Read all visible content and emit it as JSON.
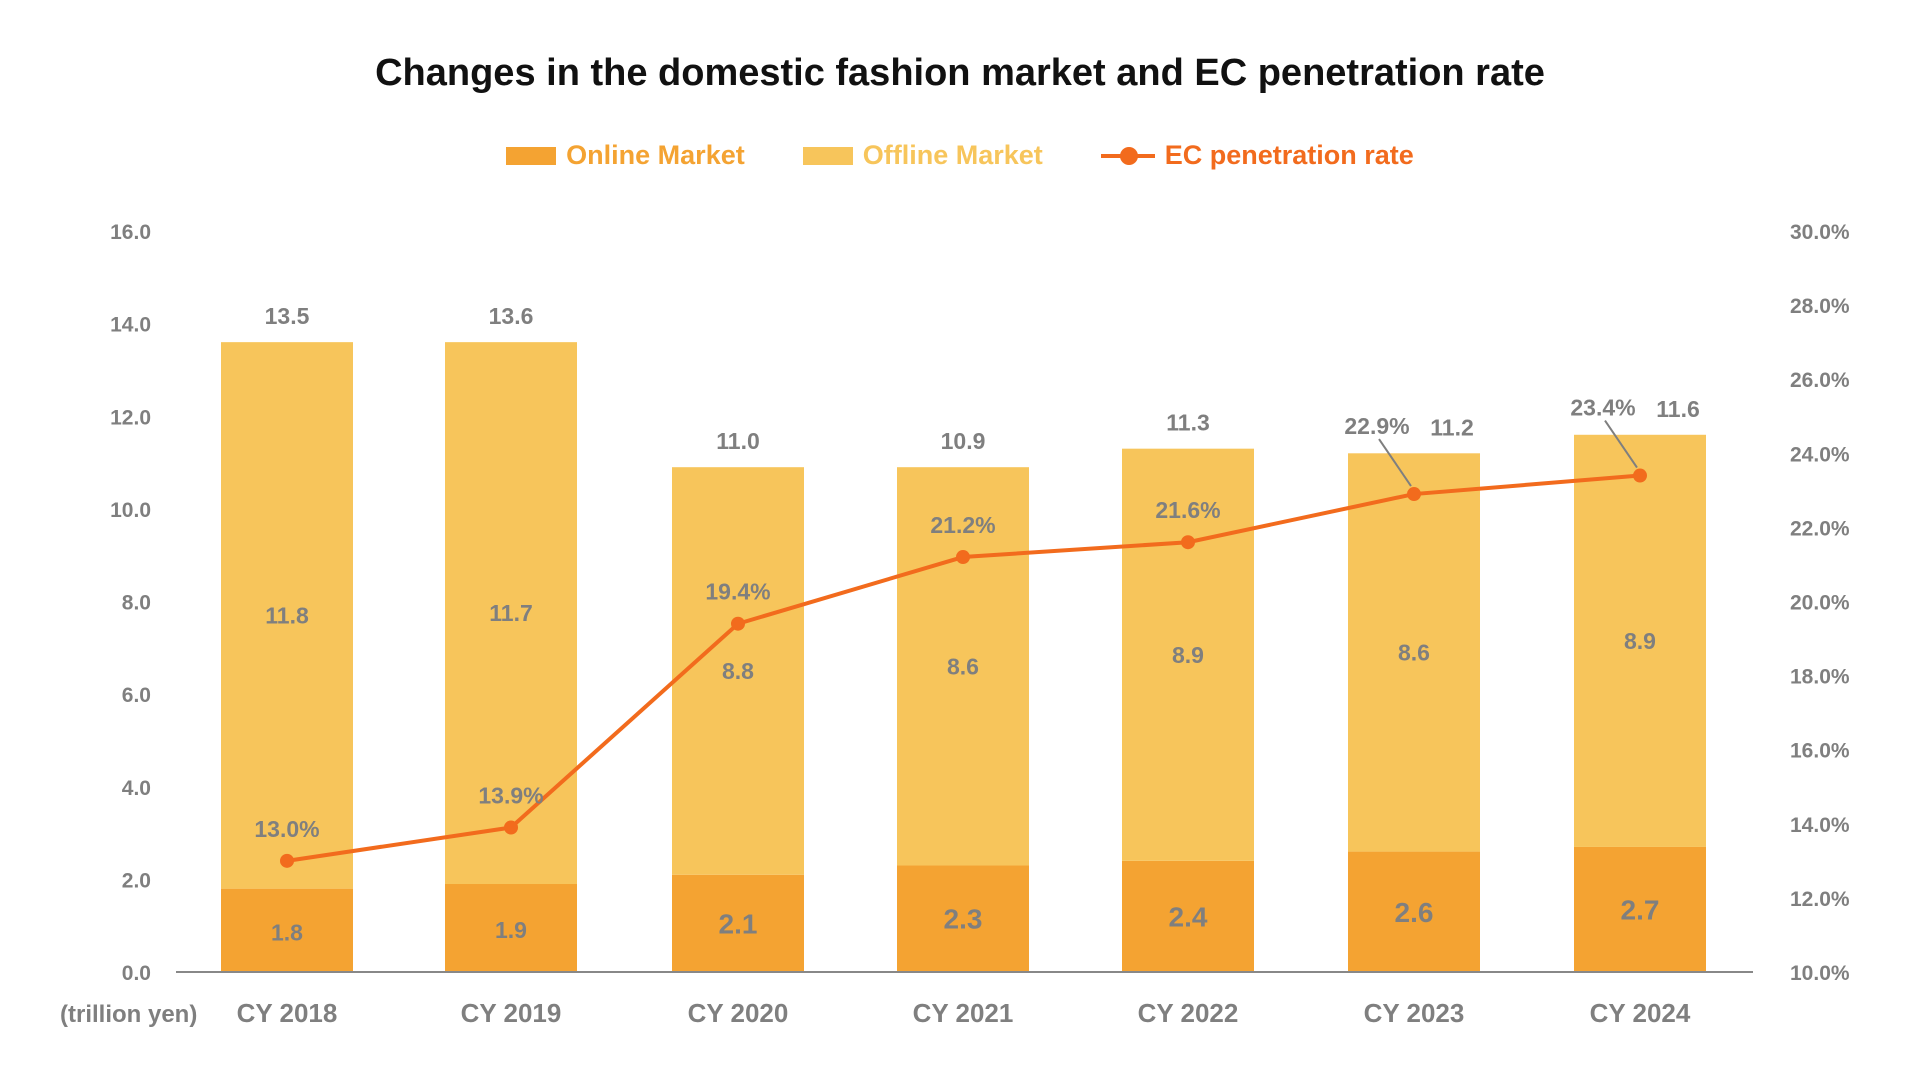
{
  "chart_data": {
    "type": "bar+line",
    "title": "Changes in the domestic fashion market and EC penetration rate",
    "unit_label": "(trillion yen)",
    "categories": [
      "CY 2018",
      "CY 2019",
      "CY 2020",
      "CY 2021",
      "CY 2022",
      "CY 2023",
      "CY 2024"
    ],
    "series": [
      {
        "name": "Online Market",
        "type": "bar",
        "stack": "market",
        "color": "#F4A332",
        "values": [
          1.8,
          1.9,
          2.1,
          2.3,
          2.4,
          2.6,
          2.7
        ]
      },
      {
        "name": "Offline Market",
        "type": "bar",
        "stack": "market",
        "color": "#F7C55B",
        "values": [
          11.8,
          11.7,
          8.8,
          8.6,
          8.9,
          8.6,
          8.9
        ]
      },
      {
        "name": "EC penetration rate",
        "type": "line",
        "axis": "right",
        "color": "#F26B1D",
        "values": [
          13.0,
          13.9,
          19.4,
          21.2,
          21.6,
          22.9,
          23.4
        ]
      }
    ],
    "totals": [
      13.5,
      13.6,
      11.0,
      10.9,
      11.3,
      11.2,
      11.6
    ],
    "left_axis": {
      "range": [
        0,
        16
      ],
      "ticks": [
        "0.0",
        "2.0",
        "4.0",
        "6.0",
        "8.0",
        "10.0",
        "12.0",
        "14.0",
        "16.0"
      ]
    },
    "right_axis": {
      "range": [
        10,
        30
      ],
      "ticks": [
        "10.0%",
        "12.0%",
        "14.0%",
        "16.0%",
        "18.0%",
        "20.0%",
        "22.0%",
        "24.0%",
        "26.0%",
        "28.0%",
        "30.0%"
      ]
    },
    "grid": false,
    "legend_position": "top-center"
  }
}
